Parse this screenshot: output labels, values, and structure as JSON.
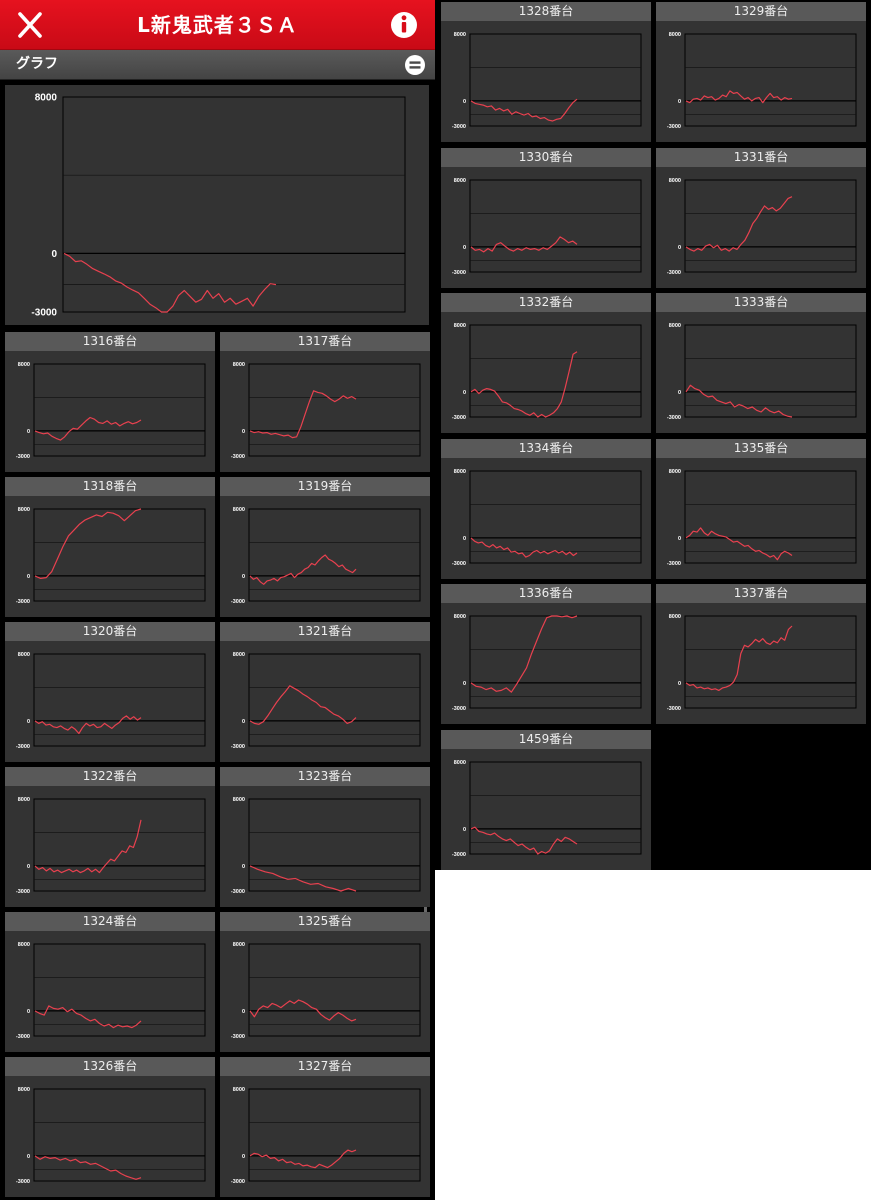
{
  "app": {
    "title": "L新鬼武者３ＳＡ",
    "close_icon": "close-icon",
    "info_icon": "info-icon"
  },
  "subheader": {
    "label": "グラフ",
    "menu_icon": "menu-icon"
  },
  "colors": {
    "header": "#d80c18",
    "panel_bg": "#333333",
    "line": "#e8414f"
  },
  "axis": {
    "max": 8000,
    "min": -3000,
    "zero": 0
  },
  "main_chart": {
    "tick_labels": [
      "8000",
      "0",
      "-3000"
    ],
    "values": [
      0,
      -150,
      -420,
      -380,
      -560,
      -780,
      -920,
      -1050,
      -1200,
      -1410,
      -1520,
      -1720,
      -1880,
      -2020,
      -2300,
      -2600,
      -2780,
      -3000,
      -3000,
      -2700,
      -2150,
      -1900,
      -2200,
      -2500,
      -2350,
      -1900,
      -2300,
      -2060,
      -2500,
      -2300,
      -2600,
      -2450,
      -2300,
      -2700,
      -2200,
      -1850,
      -1550,
      -1600
    ]
  },
  "machines": [
    {
      "label": "1316番台",
      "values": [
        0,
        -200,
        -350,
        -250,
        -650,
        -900,
        -1100,
        -700,
        -100,
        300,
        200,
        700,
        1200,
        1600,
        1400,
        1000,
        900,
        1200,
        800,
        1000,
        600,
        900,
        1100,
        850,
        1000,
        1300
      ]
    },
    {
      "label": "1317番台",
      "values": [
        0,
        -200,
        -100,
        -250,
        -200,
        -400,
        -300,
        -450,
        -600,
        -500,
        -800,
        -700,
        500,
        2000,
        3500,
        4800,
        4600,
        4500,
        4200,
        3800,
        3500,
        3800,
        4200,
        3900,
        4100,
        3800
      ]
    },
    {
      "label": "1318番台",
      "values": [
        0,
        -300,
        -200,
        500,
        2000,
        3500,
        4800,
        5500,
        6200,
        6700,
        7000,
        7300,
        7100,
        7600,
        7500,
        7200,
        6600,
        7200,
        7800,
        8000
      ]
    },
    {
      "label": "1319番台",
      "values": [
        0,
        -400,
        -200,
        -700,
        -1000,
        -600,
        -500,
        -300,
        -600,
        -200,
        -100,
        100,
        300,
        -200,
        200,
        400,
        800,
        1000,
        1500,
        1300,
        1800,
        2200,
        2500,
        2000,
        1800,
        1500,
        1100,
        1300,
        800,
        600,
        400,
        800
      ]
    },
    {
      "label": "1320番台",
      "values": [
        0,
        -300,
        -100,
        -500,
        -400,
        -700,
        -800,
        -600,
        -900,
        -1100,
        -700,
        -1000,
        -1500,
        -800,
        -300,
        -600,
        -400,
        -800,
        -700,
        -300,
        -600,
        -900,
        -500,
        -200,
        300,
        600,
        200,
        500,
        100,
        400
      ]
    },
    {
      "label": "1321番台",
      "values": [
        0,
        -300,
        -400,
        -100,
        600,
        1400,
        2200,
        2900,
        3500,
        4200,
        3900,
        3600,
        3200,
        2900,
        2500,
        2200,
        1700,
        1600,
        1200,
        800,
        600,
        200,
        -300,
        -100,
        400
      ]
    },
    {
      "label": "1322番台",
      "values": [
        0,
        -400,
        -200,
        -600,
        -300,
        -700,
        -500,
        -800,
        -600,
        -400,
        -700,
        -500,
        -800,
        -600,
        -300,
        -700,
        -400,
        -800,
        -200,
        300,
        800,
        600,
        1200,
        1800,
        1600,
        2400,
        2200,
        3500,
        5500
      ]
    },
    {
      "label": "1323番台",
      "values": [
        0,
        -400,
        -700,
        -900,
        -1300,
        -1600,
        -1500,
        -1900,
        -2200,
        -2100,
        -2500,
        -2700,
        -3000,
        -2700,
        -3000
      ]
    },
    {
      "label": "1324番台",
      "values": [
        0,
        -300,
        -500,
        600,
        300,
        200,
        400,
        -100,
        200,
        -300,
        -500,
        -900,
        -1200,
        -1000,
        -1500,
        -1800,
        -1600,
        -2000,
        -1700,
        -1900,
        -1800,
        -2000,
        -1700,
        -1200
      ]
    },
    {
      "label": "1325番台",
      "values": [
        0,
        -700,
        200,
        600,
        400,
        900,
        700,
        400,
        800,
        1200,
        900,
        1300,
        1100,
        800,
        400,
        200,
        -400,
        -800,
        -1100,
        -600,
        -200,
        -500,
        -900,
        -1200,
        -1000
      ]
    },
    {
      "label": "1326番台",
      "values": [
        0,
        -400,
        -100,
        -300,
        -200,
        -500,
        -300,
        -600,
        -400,
        -800,
        -700,
        -1000,
        -900,
        -1200,
        -1500,
        -1800,
        -1700,
        -2100,
        -2400,
        -2600,
        -2800,
        -2600
      ]
    },
    {
      "label": "1327番台",
      "values": [
        0,
        300,
        200,
        -100,
        100,
        -300,
        -200,
        -600,
        -400,
        -800,
        -700,
        -1000,
        -900,
        -1200,
        -1100,
        -1300,
        -1400,
        -1000,
        -1200,
        -1400,
        -1100,
        -700,
        -300,
        300,
        700,
        500,
        700
      ]
    },
    {
      "label": "1328番台",
      "values": [
        0,
        -300,
        -400,
        -500,
        -700,
        -600,
        -1100,
        -900,
        -1200,
        -1000,
        -1600,
        -1300,
        -1500,
        -1700,
        -1500,
        -1900,
        -1800,
        -2100,
        -2000,
        -2300,
        -2400,
        -2200,
        -2100,
        -1500,
        -800,
        -200,
        200
      ]
    },
    {
      "label": "1329番台",
      "values": [
        0,
        -200,
        200,
        300,
        100,
        600,
        400,
        500,
        100,
        300,
        700,
        500,
        1200,
        900,
        1000,
        600,
        200,
        400,
        0,
        300,
        400,
        -200,
        400,
        900,
        400,
        500,
        100,
        400,
        200,
        300
      ]
    },
    {
      "label": "1330番台",
      "values": [
        0,
        -400,
        -300,
        -600,
        -200,
        -500,
        300,
        500,
        100,
        -300,
        -500,
        -200,
        -400,
        -100,
        -300,
        -200,
        -400,
        -100,
        -300,
        100,
        500,
        1200,
        900,
        500,
        700,
        300
      ]
    },
    {
      "label": "1331番台",
      "values": [
        0,
        -300,
        -500,
        -200,
        -400,
        100,
        300,
        -100,
        200,
        -400,
        -200,
        -500,
        -100,
        -300,
        300,
        800,
        1700,
        2800,
        3400,
        4200,
        4900,
        4500,
        4700,
        4300,
        4600,
        5200,
        5800,
        6000
      ]
    },
    {
      "label": "1332番台",
      "values": [
        0,
        300,
        -200,
        200,
        400,
        300,
        100,
        -500,
        -1200,
        -1300,
        -1600,
        -2000,
        -2100,
        -2300,
        -2600,
        -2800,
        -2500,
        -3000,
        -2700,
        -3000,
        -2800,
        -2500,
        -2000,
        -1200,
        500,
        2500,
        4500,
        4800
      ]
    },
    {
      "label": "1333番台",
      "values": [
        0,
        800,
        400,
        200,
        -300,
        -600,
        -500,
        -1000,
        -1200,
        -1400,
        -1200,
        -1800,
        -1500,
        -1700,
        -2000,
        -1800,
        -2200,
        -2400,
        -1900,
        -2300,
        -2500,
        -2300,
        -2700,
        -2900,
        -3000
      ]
    },
    {
      "label": "1334番台",
      "values": [
        0,
        -400,
        -600,
        -500,
        -900,
        -1100,
        -800,
        -1200,
        -1000,
        -1400,
        -1200,
        -1700,
        -1600,
        -1900,
        -1800,
        -2300,
        -2100,
        -1700,
        -1500,
        -1800,
        -1600,
        -1900,
        -1700,
        -1500,
        -1800,
        -1600,
        -2000,
        -1700,
        -2100,
        -1800
      ]
    },
    {
      "label": "1335番台",
      "values": [
        0,
        300,
        800,
        700,
        1200,
        600,
        300,
        800,
        500,
        300,
        200,
        100,
        -200,
        -500,
        -400,
        -700,
        -1000,
        -900,
        -1300,
        -1600,
        -1500,
        -1800,
        -2000,
        -2300,
        -2100,
        -2600,
        -1900,
        -1600,
        -1800,
        -2100
      ]
    },
    {
      "label": "1336番台",
      "values": [
        0,
        -400,
        -500,
        -800,
        -600,
        -1000,
        -900,
        -600,
        -1100,
        -200,
        800,
        1800,
        3500,
        5000,
        6500,
        7800,
        8000,
        8000,
        7900,
        8000,
        7800,
        8000
      ]
    },
    {
      "label": "1337番台",
      "values": [
        0,
        -300,
        -200,
        -600,
        -500,
        -700,
        -600,
        -800,
        -700,
        -900,
        -600,
        -500,
        -300,
        100,
        1000,
        3500,
        4500,
        4300,
        4700,
        5200,
        4900,
        5300,
        4800,
        4600,
        5000,
        4800,
        5400,
        5100,
        6400,
        6800
      ]
    },
    {
      "label": "1459番台",
      "values": [
        0,
        200,
        -300,
        -400,
        -600,
        -700,
        -500,
        -900,
        -1200,
        -1400,
        -1200,
        -1600,
        -2000,
        -1800,
        -2200,
        -2500,
        -2300,
        -3000,
        -2700,
        -2900,
        -2600,
        -1800,
        -1200,
        -1500,
        -1000,
        -1200,
        -1500,
        -1800
      ]
    }
  ]
}
